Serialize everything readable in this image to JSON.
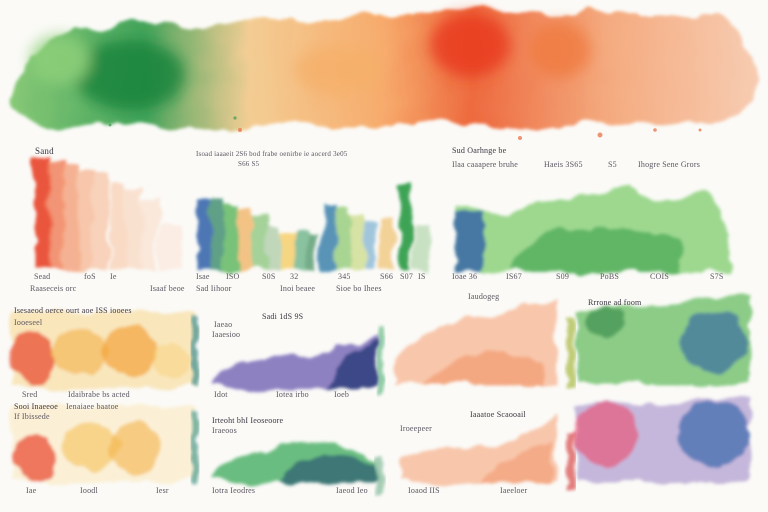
{
  "colors": {
    "red": "#e8432a",
    "orange": "#f28a4c",
    "peach": "#f7c9a8",
    "yellow": "#f5c95a",
    "green": "#4caf50",
    "dark_green": "#1f7a3a",
    "blue": "#2f5fa8",
    "navy": "#1b2f6e",
    "purple": "#6a4aa0",
    "pink": "#e85a7a"
  },
  "labels": {
    "top_left_title": "Sand",
    "top_mid_caption": "Isoad iaaaeit 2S6 bod frabe oenirbe ie aocerd 3e05",
    "top_mid_sub": "S66 S5",
    "top_right_cap1": "Sud Oarhnge be",
    "top_right_cap2": "Ilaa caaapere bruhe",
    "top_right_cap3": "Haeis 3S65",
    "top_right_cap4": "S5",
    "top_right_cap5": "Ihogre Sene Grors",
    "axis_a1": "Sead",
    "axis_a2": "foS",
    "axis_a3": "Ie",
    "axis_b1": "Isae",
    "axis_b2": "ISO",
    "axis_b3": "S0S",
    "axis_b4": "32",
    "axis_b5": "345",
    "axis_b6": "S66",
    "axis_b7": "S07",
    "axis_b8": "IS",
    "axis_c1": "Ioae 36",
    "axis_c2": "IS67",
    "axis_c3": "S09",
    "axis_c4": "PoBS",
    "axis_c5": "COIS",
    "axis_c6": "S7S",
    "foot_a1": "Raaseceis orc",
    "foot_a2": "Isaaf beoe",
    "foot_b1": "Sad Iihoor",
    "foot_b2": "Inoi beaee",
    "foot_b3": "Sioe bo Ihees",
    "foot_c1": "Iaudogeg",
    "mid1_title": "Isesaeod oerce ourt aoe ISS iooees",
    "mid1_sub": "Iooeseel",
    "mid1_foot1": "Sred",
    "mid1_foot2": "Idaibrabe bs acted",
    "mid2_title": "Sadi 1dS 9S",
    "mid2_sub1": "Iaeao",
    "mid2_sub2": "Iaaesioo",
    "mid2_foot1": "Idot",
    "mid2_foot2": "Iotea irbo",
    "mid2_foot3": "Ioeb",
    "mid4_title": "Rrrone ad foom",
    "bot1_title": "Sooi Inaeeoe",
    "bot1_sub1": "Ienaiaee baatoe",
    "bot1_sub2": "If Ibissede",
    "bot1_foot1": "Iae",
    "bot1_foot2": "Ioodl",
    "bot1_foot3": "Iesr",
    "bot2_title": "Irteoht bhI Ieoseoore",
    "bot2_sub": "Iraeoos",
    "bot2_foot1": "Iotra Ieodres",
    "bot2_foot2": "Iaeod Ieo",
    "bot3_title": "Iaaatoe Scaooail",
    "bot3_sub": "Iroeepeer",
    "bot3_foot1": "Ioaod IIS",
    "bot3_foot2": "Iaeeloer"
  }
}
